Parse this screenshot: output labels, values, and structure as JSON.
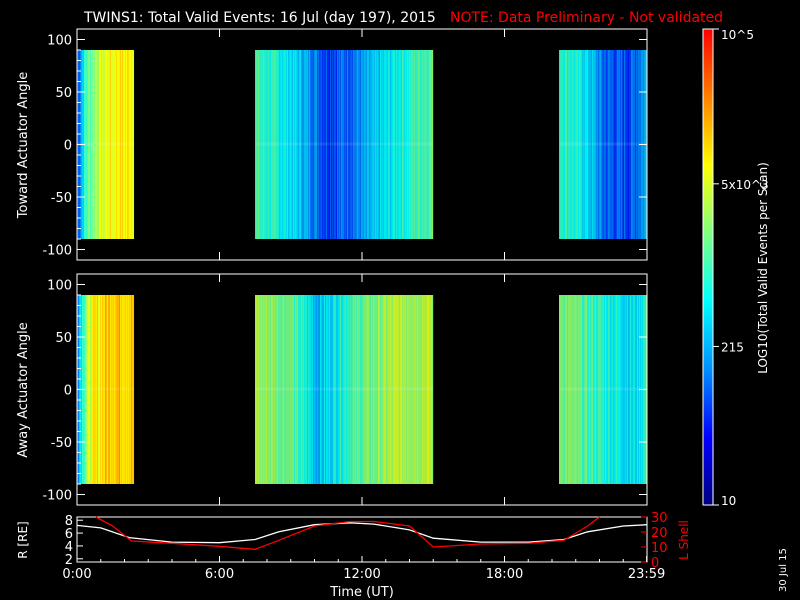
{
  "title": "TWINS1: Total Valid Events: 16 Jul (day 197), 2015",
  "note": "NOTE: Data Preliminary - Not validated",
  "side_date": "30 Jul 15",
  "colorbar": {
    "label": "LOG10(Total Valid Events per Scan)",
    "ticks": [
      "10",
      "215",
      "5x10^3",
      "10^5"
    ],
    "tick_values": [
      10,
      215,
      5000,
      100000
    ],
    "colors": [
      "#000080",
      "#0000ff",
      "#0090ff",
      "#00ffff",
      "#80ff80",
      "#ffff00",
      "#ff8000",
      "#ff0000"
    ]
  },
  "chart_data": [
    {
      "type": "heatmap",
      "name": "toward",
      "ylabel": "Toward Actuator Angle",
      "ylim": [
        -110,
        110
      ],
      "yticks": [
        -100,
        -50,
        0,
        50,
        100
      ],
      "data_y_range": [
        -90,
        90
      ],
      "xlim": [
        0,
        24
      ],
      "segments": [
        {
          "start_hr": 0.0,
          "end_hr": 2.4,
          "profile": [
            [
              0,
              0.2
            ],
            [
              0.15,
              0.5
            ],
            [
              0.3,
              0.62
            ],
            [
              0.5,
              0.7
            ],
            [
              1.0,
              0.74
            ]
          ]
        },
        {
          "start_hr": 7.5,
          "end_hr": 15.0,
          "profile": [
            [
              0,
              0.5
            ],
            [
              0.2,
              0.42
            ],
            [
              0.4,
              0.22
            ],
            [
              0.6,
              0.3
            ],
            [
              0.8,
              0.45
            ],
            [
              1.0,
              0.55
            ]
          ]
        },
        {
          "start_hr": 20.3,
          "end_hr": 24.0,
          "profile": [
            [
              0,
              0.5
            ],
            [
              0.3,
              0.42
            ],
            [
              0.5,
              0.25
            ],
            [
              0.8,
              0.22
            ],
            [
              1.0,
              0.35
            ]
          ]
        }
      ]
    },
    {
      "type": "heatmap",
      "name": "away",
      "ylabel": "Away Actuator Angle",
      "ylim": [
        -110,
        110
      ],
      "yticks": [
        -100,
        -50,
        0,
        50,
        100
      ],
      "data_y_range": [
        -90,
        90
      ],
      "xlim": [
        0,
        24
      ],
      "segments": [
        {
          "start_hr": 0.0,
          "end_hr": 2.4,
          "profile": [
            [
              0,
              0.3
            ],
            [
              0.15,
              0.6
            ],
            [
              0.3,
              0.72
            ],
            [
              0.6,
              0.8
            ],
            [
              1.0,
              0.78
            ]
          ]
        },
        {
          "start_hr": 7.5,
          "end_hr": 15.0,
          "profile": [
            [
              0,
              0.62
            ],
            [
              0.2,
              0.55
            ],
            [
              0.35,
              0.35
            ],
            [
              0.55,
              0.52
            ],
            [
              0.8,
              0.64
            ],
            [
              1.0,
              0.64
            ]
          ]
        },
        {
          "start_hr": 20.3,
          "end_hr": 24.0,
          "profile": [
            [
              0,
              0.58
            ],
            [
              0.3,
              0.52
            ],
            [
              0.6,
              0.45
            ],
            [
              0.85,
              0.4
            ],
            [
              1.0,
              0.5
            ]
          ]
        }
      ]
    },
    {
      "type": "line",
      "name": "orbit",
      "ylabel_left": "R [RE]",
      "ylabel_right": "L Shell",
      "ylim_left": [
        1.5,
        8.5
      ],
      "ylim_right": [
        0,
        30
      ],
      "yticks_left": [
        2,
        4,
        6,
        8
      ],
      "yticks_right": [
        0,
        10,
        20,
        30
      ],
      "xlim": [
        0,
        24
      ],
      "xticks": [
        0,
        6,
        12,
        18,
        23.983
      ],
      "xticklabels": [
        "0:00",
        "6:00",
        "12:00",
        "18:00",
        "23:59"
      ],
      "xlabel": "Time (UT)",
      "series": [
        {
          "name": "R",
          "color": "#ffffff",
          "axis": "left",
          "x": [
            0,
            1,
            2.2,
            4,
            6,
            7.5,
            8.5,
            10,
            11.5,
            12.5,
            14,
            15,
            17,
            19,
            20.5,
            21.5,
            23,
            24
          ],
          "y": [
            7.2,
            6.8,
            5.3,
            4.6,
            4.5,
            5.0,
            6.2,
            7.3,
            7.6,
            7.4,
            6.5,
            5.2,
            4.6,
            4.6,
            5.0,
            6.2,
            7.1,
            7.3
          ]
        },
        {
          "name": "L Shell",
          "color": "#ff0000",
          "axis": "right",
          "x": [
            0.8,
            1.5,
            2.3,
            4,
            6,
            7.5,
            8.5,
            10,
            11.5,
            12.5,
            14,
            15,
            17,
            19,
            20.5,
            21.5,
            22
          ],
          "y": [
            30,
            24,
            14,
            12.5,
            10.5,
            8.5,
            14.5,
            24,
            27,
            27,
            24,
            10,
            12,
            12.5,
            14.5,
            24,
            30
          ]
        }
      ]
    }
  ]
}
